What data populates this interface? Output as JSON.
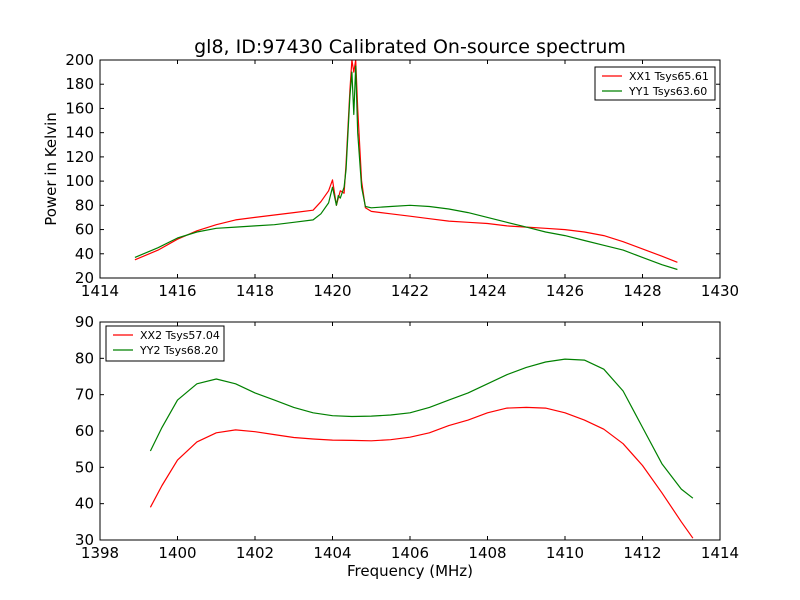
{
  "chart_data": [
    {
      "type": "line",
      "title": "gl8, ID:97430 Calibrated On-source spectrum",
      "xlabel": "",
      "ylabel": "Power in Kelvin",
      "xlim": [
        1414,
        1430
      ],
      "ylim": [
        20,
        200
      ],
      "xticks": [
        1414,
        1416,
        1418,
        1420,
        1422,
        1424,
        1426,
        1428,
        1430
      ],
      "yticks": [
        20,
        40,
        60,
        80,
        100,
        120,
        140,
        160,
        180,
        200
      ],
      "grid": false,
      "legend_position": "top-right",
      "series": [
        {
          "name": "XX1 Tsys65.61",
          "color": "#ff0000",
          "x": [
            1414.9,
            1415.5,
            1416.0,
            1416.5,
            1417.0,
            1417.5,
            1418.0,
            1418.5,
            1419.0,
            1419.5,
            1419.7,
            1419.9,
            1420.0,
            1420.1,
            1420.15,
            1420.2,
            1420.3,
            1420.35,
            1420.45,
            1420.5,
            1420.55,
            1420.6,
            1420.65,
            1420.75,
            1420.85,
            1421.0,
            1421.5,
            1422.0,
            1422.5,
            1423.0,
            1423.5,
            1424.0,
            1424.5,
            1425.0,
            1425.5,
            1426.0,
            1426.5,
            1427.0,
            1427.5,
            1428.0,
            1428.5,
            1428.9
          ],
          "y": [
            35,
            43,
            52,
            59,
            64,
            68,
            70,
            72,
            74,
            76,
            83,
            92,
            101,
            80,
            86,
            92,
            90,
            115,
            175,
            200,
            190,
            200,
            160,
            100,
            78,
            75,
            73,
            71,
            69,
            67,
            66,
            65,
            63,
            62,
            61,
            60,
            58,
            55,
            50,
            44,
            38,
            33
          ]
        },
        {
          "name": "YY1 Tsys63.60",
          "color": "#008000",
          "x": [
            1414.9,
            1415.5,
            1416.0,
            1416.5,
            1417.0,
            1417.5,
            1418.0,
            1418.5,
            1419.0,
            1419.5,
            1419.7,
            1419.9,
            1420.0,
            1420.1,
            1420.15,
            1420.2,
            1420.3,
            1420.35,
            1420.45,
            1420.5,
            1420.55,
            1420.6,
            1420.65,
            1420.75,
            1420.85,
            1421.0,
            1421.5,
            1422.0,
            1422.5,
            1423.0,
            1423.5,
            1424.0,
            1424.5,
            1425.0,
            1425.5,
            1426.0,
            1426.5,
            1427.0,
            1427.5,
            1428.0,
            1428.5,
            1428.9
          ],
          "y": [
            37,
            45,
            53,
            58,
            61,
            62,
            63,
            64,
            66,
            68,
            73,
            82,
            95,
            80,
            88,
            86,
            95,
            110,
            170,
            190,
            155,
            195,
            140,
            95,
            79,
            78,
            79,
            80,
            79,
            77,
            74,
            70,
            66,
            62,
            58,
            55,
            51,
            47,
            43,
            37,
            31,
            27
          ]
        }
      ]
    },
    {
      "type": "line",
      "title": "",
      "xlabel": "Frequency (MHz)",
      "ylabel": "",
      "xlim": [
        1398,
        1414
      ],
      "ylim": [
        30,
        90
      ],
      "xticks": [
        1398,
        1400,
        1402,
        1404,
        1406,
        1408,
        1410,
        1412,
        1414
      ],
      "yticks": [
        30,
        40,
        50,
        60,
        70,
        80,
        90
      ],
      "grid": false,
      "legend_position": "top-left",
      "series": [
        {
          "name": "XX2 Tsys57.04",
          "color": "#ff0000",
          "x": [
            1399.3,
            1399.6,
            1400.0,
            1400.5,
            1401.0,
            1401.5,
            1402.0,
            1402.5,
            1403.0,
            1403.5,
            1404.0,
            1404.5,
            1405.0,
            1405.5,
            1406.0,
            1406.5,
            1407.0,
            1407.5,
            1408.0,
            1408.5,
            1409.0,
            1409.5,
            1410.0,
            1410.5,
            1411.0,
            1411.5,
            1412.0,
            1412.5,
            1413.0,
            1413.3
          ],
          "y": [
            39,
            45,
            52,
            57,
            59.5,
            60.3,
            59.8,
            59,
            58.2,
            57.8,
            57.5,
            57.4,
            57.3,
            57.6,
            58.3,
            59.5,
            61.5,
            63,
            65,
            66.3,
            66.5,
            66.3,
            65,
            63,
            60.5,
            56.5,
            50.5,
            43,
            35,
            30.5
          ]
        },
        {
          "name": "YY2 Tsys68.20",
          "color": "#008000",
          "x": [
            1399.3,
            1399.6,
            1400.0,
            1400.5,
            1401.0,
            1401.5,
            1402.0,
            1402.5,
            1403.0,
            1403.5,
            1404.0,
            1404.5,
            1405.0,
            1405.5,
            1406.0,
            1406.5,
            1407.0,
            1407.5,
            1408.0,
            1408.5,
            1409.0,
            1409.5,
            1410.0,
            1410.5,
            1411.0,
            1411.5,
            1412.0,
            1412.5,
            1413.0,
            1413.3
          ],
          "y": [
            54.5,
            61,
            68.5,
            73,
            74.3,
            73,
            70.5,
            68.5,
            66.5,
            65,
            64.2,
            64,
            64.1,
            64.4,
            65,
            66.5,
            68.5,
            70.5,
            73,
            75.5,
            77.5,
            79,
            79.8,
            79.5,
            77,
            71,
            61,
            51,
            44,
            41.5
          ]
        }
      ]
    }
  ]
}
